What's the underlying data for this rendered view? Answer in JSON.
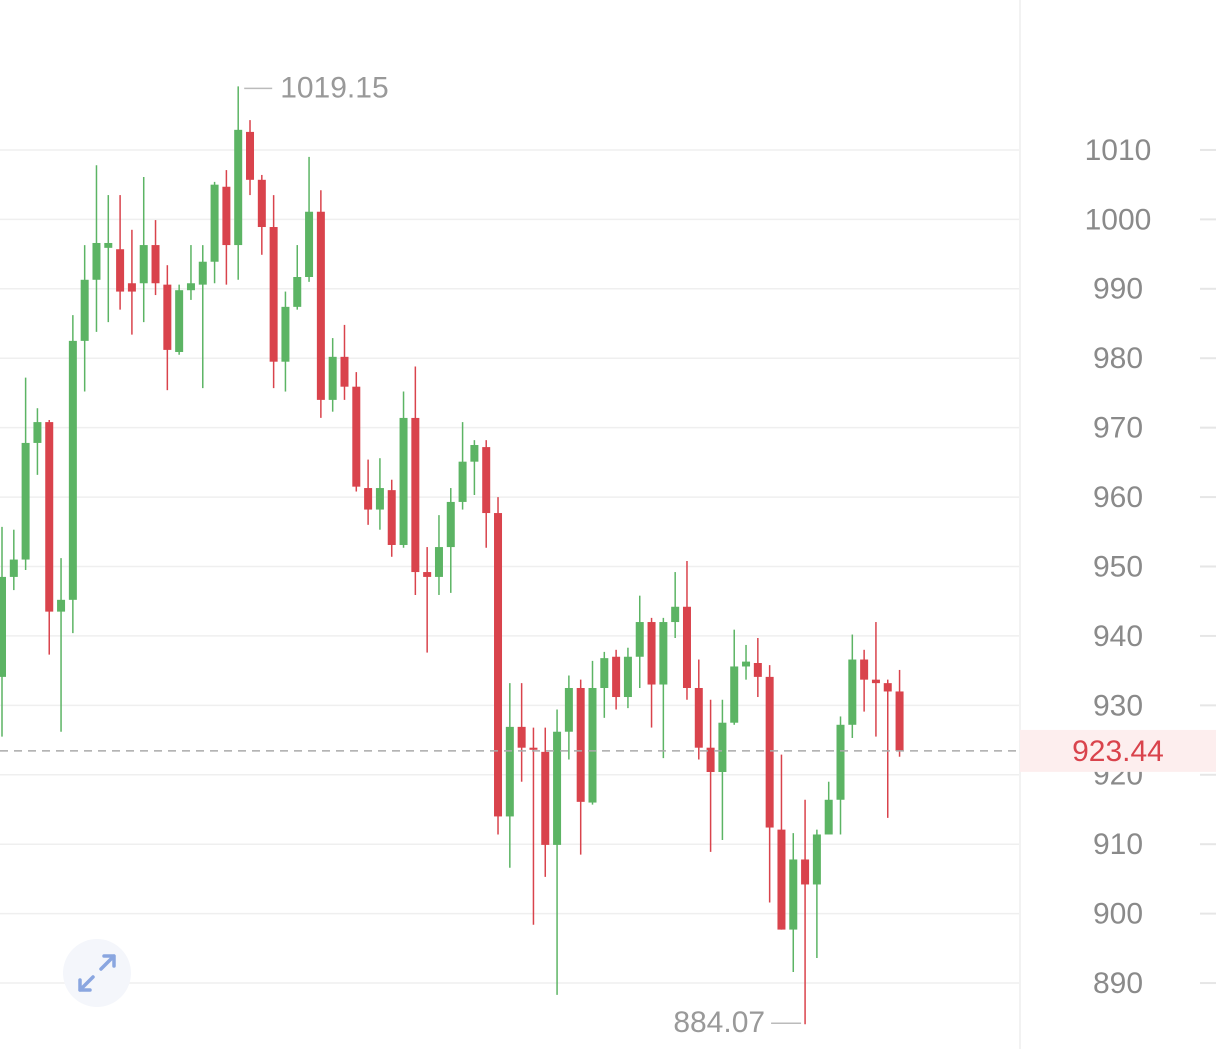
{
  "chart_data": {
    "type": "candlestick",
    "up_color": "#5cb464",
    "down_color": "#d9434c",
    "ylim": [
      880.5,
      1031.6
    ],
    "yticks": [
      890,
      900,
      910,
      920,
      930,
      940,
      950,
      960,
      970,
      980,
      990,
      1000,
      1010
    ],
    "grid": true,
    "open": [
      934.1,
      948.5,
      951.0,
      967.8,
      970.8,
      943.5,
      945.2,
      982.5,
      991.3,
      995.9,
      995.7,
      990.8,
      990.8,
      996.3,
      990.6,
      980.9,
      989.8,
      990.6,
      993.9,
      1004.7,
      996.3,
      1012.6,
      1005.7,
      998.9,
      979.5,
      987.4,
      991.7,
      1001.1,
      974.0,
      980.2,
      975.9,
      961.3,
      958.2,
      961.0,
      953.1,
      971.4,
      949.2,
      948.5,
      952.8,
      959.3,
      965.1,
      967.2,
      957.7,
      914.0,
      926.9,
      923.9,
      923.3,
      909.9,
      926.2,
      932.5,
      916.0,
      932.5,
      937.0,
      931.2,
      937.0,
      942.0,
      933.0,
      942.0,
      944.2,
      932.5,
      923.9,
      920.4,
      927.5,
      935.6,
      936.1,
      934.1,
      912.1,
      897.7,
      907.8,
      904.2,
      911.4,
      916.4,
      927.2,
      936.6,
      933.7,
      933.2,
      932.0
    ],
    "high": [
      955.7,
      955.3,
      977.2,
      972.8,
      971.1,
      951.2,
      986.2,
      996.3,
      1007.8,
      1003.5,
      1003.5,
      998.5,
      1006.1,
      999.9,
      993.4,
      990.6,
      996.3,
      996.3,
      1005.4,
      1007.1,
      1019.15,
      1014.3,
      1006.4,
      1003.5,
      989.6,
      996.3,
      1009.0,
      1004.2,
      982.9,
      984.8,
      978.0,
      965.4,
      965.6,
      962.5,
      975.2,
      978.8,
      952.8,
      957.4,
      961.3,
      970.8,
      968.2,
      968.2,
      960.0,
      933.2,
      933.2,
      926.8,
      926.8,
      929.4,
      934.3,
      933.7,
      936.4,
      937.7,
      938.0,
      938.3,
      945.8,
      942.6,
      942.6,
      949.2,
      950.8,
      936.6,
      930.8,
      930.8,
      940.9,
      938.7,
      939.7,
      935.8,
      922.9,
      911.6,
      916.4,
      912.1,
      919.0,
      928.4,
      940.2,
      938.0,
      942.0,
      933.7,
      935.1
    ],
    "low": [
      925.5,
      946.6,
      949.5,
      963.2,
      937.3,
      926.2,
      940.4,
      975.2,
      983.8,
      985.2,
      987.0,
      983.4,
      985.2,
      989.1,
      975.4,
      980.5,
      988.4,
      975.7,
      990.8,
      990.6,
      991.3,
      1003.5,
      994.9,
      975.7,
      975.2,
      987.0,
      991.0,
      971.4,
      972.3,
      974.0,
      960.8,
      956.0,
      955.3,
      951.4,
      952.7,
      945.9,
      937.6,
      945.9,
      946.2,
      958.2,
      960.3,
      952.7,
      911.4,
      906.6,
      919.0,
      898.4,
      905.3,
      888.3,
      922.2,
      908.5,
      915.7,
      928.2,
      929.4,
      929.6,
      932.5,
      926.8,
      922.4,
      939.7,
      930.8,
      922.2,
      908.9,
      910.6,
      927.2,
      933.7,
      931.2,
      901.6,
      897.7,
      891.6,
      884.07,
      893.6,
      911.4,
      911.4,
      925.3,
      929.1,
      925.5,
      913.8,
      922.6
    ],
    "close": [
      948.5,
      951.0,
      967.8,
      970.8,
      943.5,
      945.2,
      982.5,
      991.3,
      996.6,
      996.6,
      989.6,
      989.6,
      996.3,
      990.8,
      981.2,
      989.8,
      990.8,
      993.9,
      1005.0,
      996.3,
      1012.9,
      1005.7,
      998.9,
      979.5,
      987.4,
      991.7,
      1001.1,
      974.0,
      980.2,
      975.9,
      961.5,
      958.2,
      961.3,
      953.1,
      971.4,
      949.2,
      948.5,
      952.8,
      959.3,
      965.1,
      967.5,
      957.7,
      914.0,
      926.9,
      923.9,
      923.6,
      909.9,
      926.2,
      932.5,
      916.1,
      932.5,
      936.8,
      931.2,
      937.0,
      942.0,
      933.0,
      942.0,
      944.2,
      932.5,
      923.9,
      920.4,
      927.5,
      935.6,
      936.3,
      934.1,
      912.4,
      897.7,
      907.8,
      904.2,
      911.4,
      916.4,
      927.2,
      936.6,
      933.7,
      933.2,
      932.0,
      923.44
    ]
  }
}
